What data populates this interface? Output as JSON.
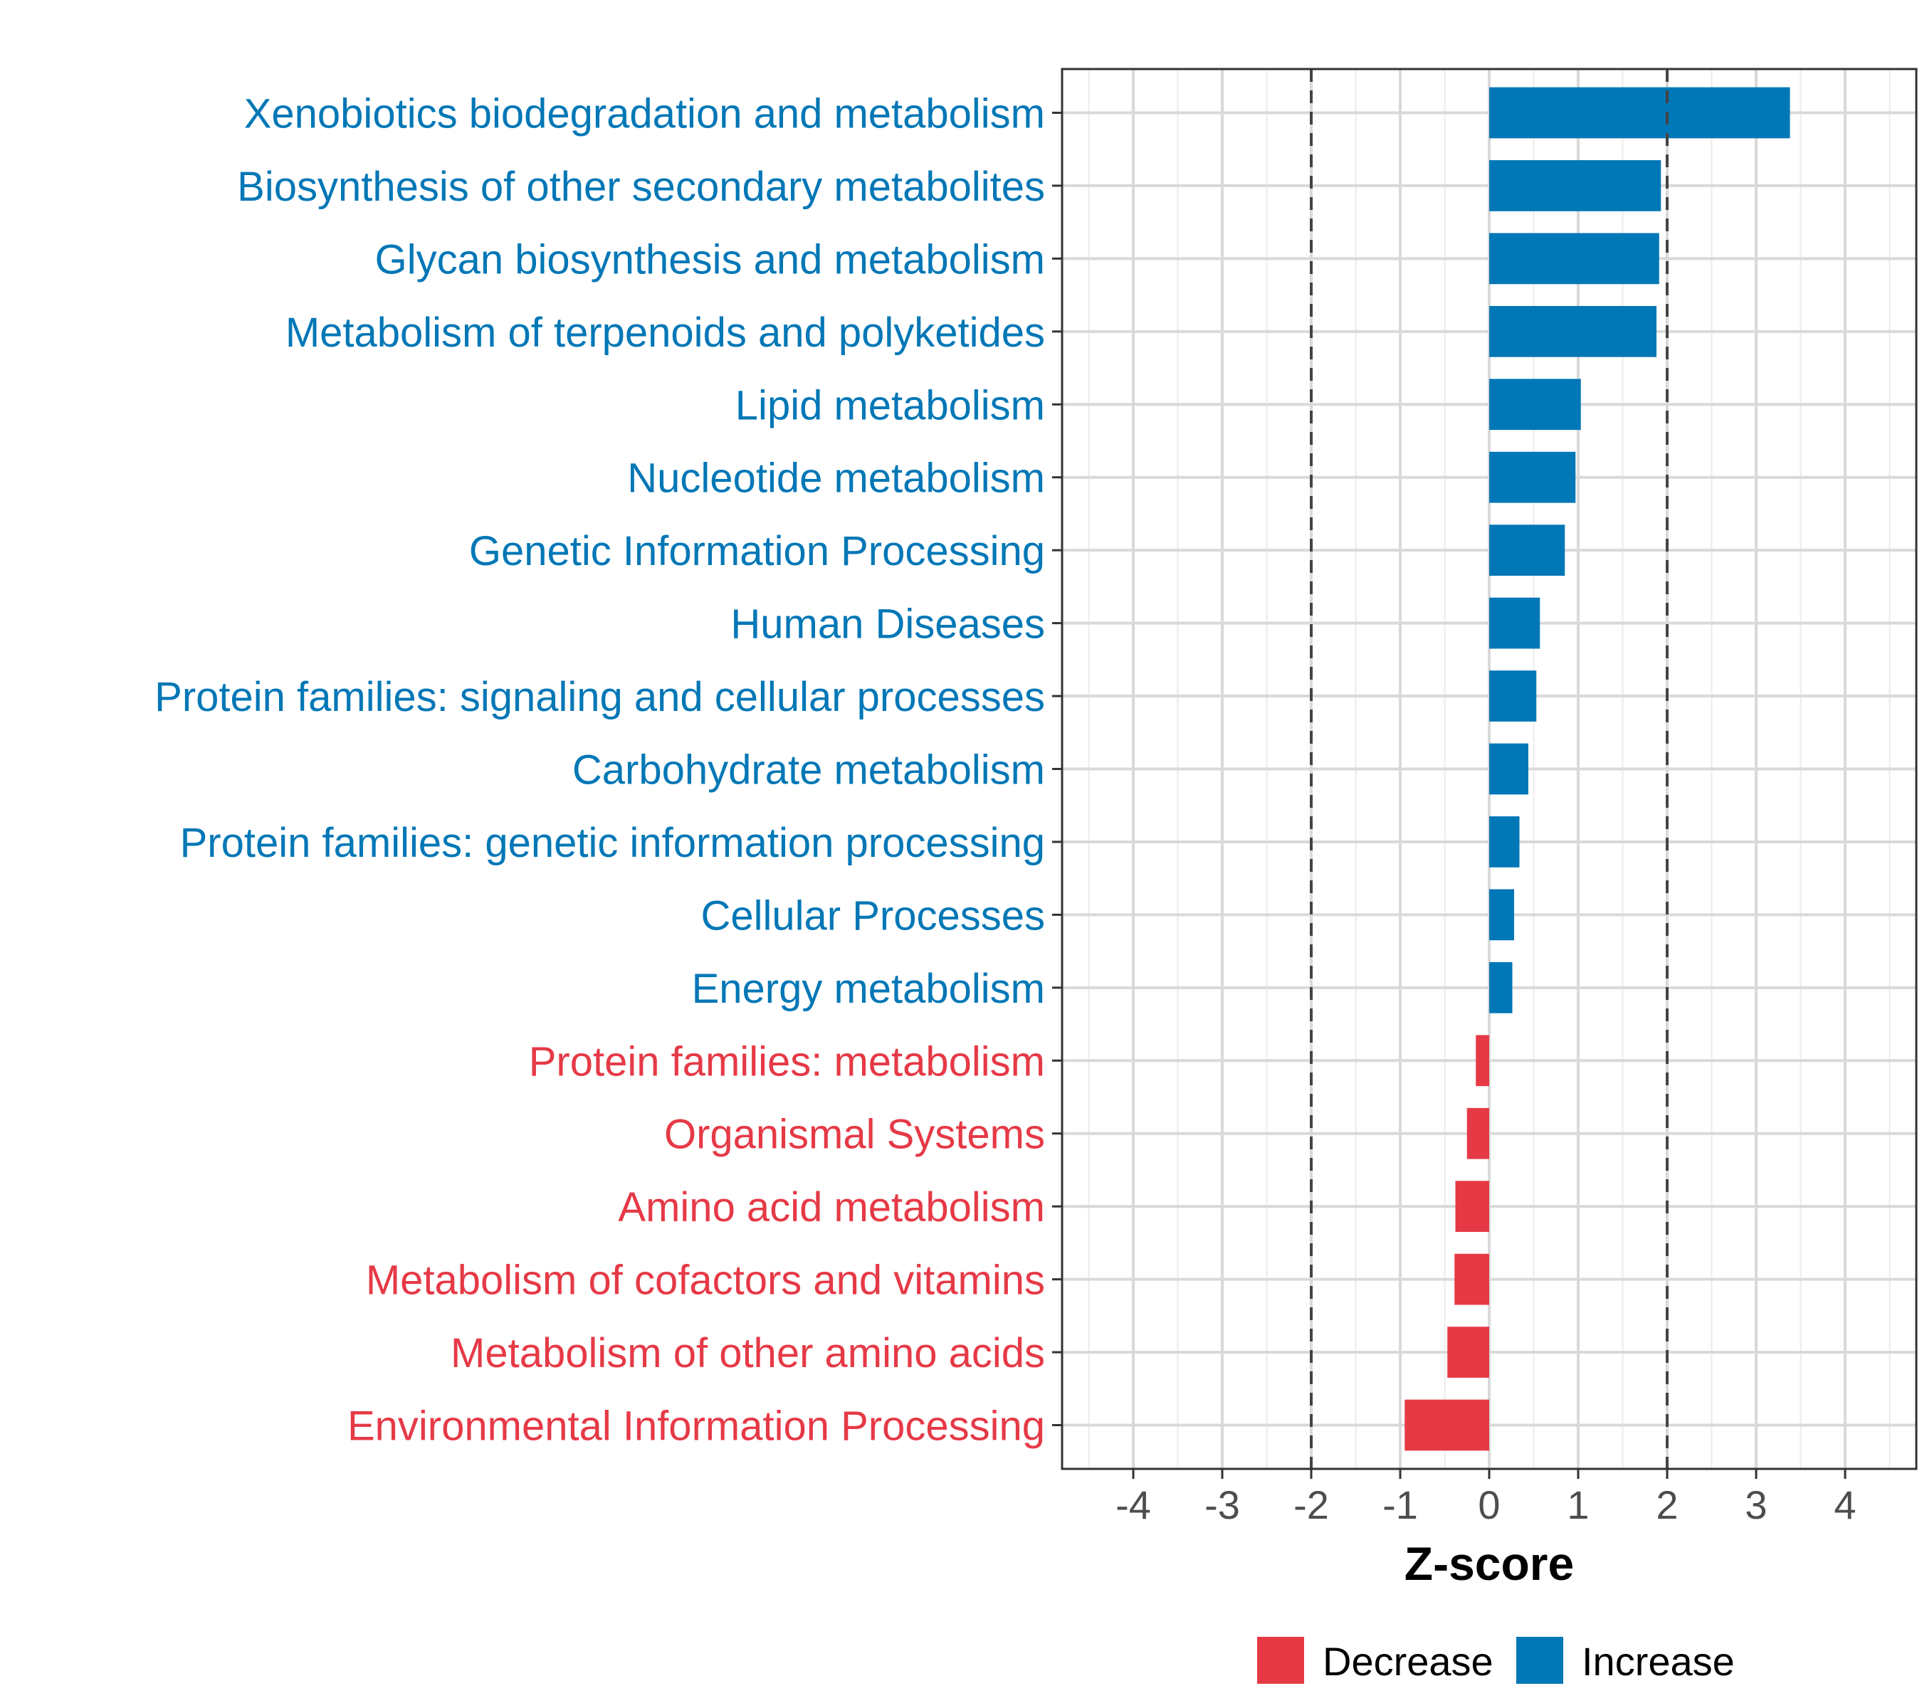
{
  "chart_data": {
    "type": "bar",
    "orientation": "horizontal",
    "title": "",
    "xlabel": "Z-score",
    "ylabel": "",
    "xlim": [
      -4.8,
      4.8
    ],
    "xticks": [
      -4,
      -3,
      -2,
      -1,
      0,
      1,
      2,
      3,
      4
    ],
    "xtick_labels": [
      "-4",
      "-3",
      "-2",
      "-1",
      "0",
      "1",
      "2",
      "3",
      "4"
    ],
    "reference_lines": [
      -2,
      2
    ],
    "grid": true,
    "categories": [
      "Xenobiotics biodegradation and metabolism",
      "Biosynthesis of other secondary metabolites",
      "Glycan biosynthesis and metabolism",
      "Metabolism of terpenoids and polyketides",
      "Lipid metabolism",
      "Nucleotide metabolism",
      "Genetic Information Processing",
      "Human Diseases",
      "Protein families: signaling and cellular processes",
      "Carbohydrate metabolism",
      "Protein families: genetic information processing",
      "Cellular Processes",
      "Energy metabolism",
      "Protein families: metabolism",
      "Organismal Systems",
      "Amino acid metabolism",
      "Metabolism of cofactors and vitamins",
      "Metabolism of other amino acids",
      "Environmental Information Processing"
    ],
    "values": [
      3.38,
      1.93,
      1.91,
      1.88,
      1.03,
      0.97,
      0.85,
      0.57,
      0.53,
      0.44,
      0.34,
      0.28,
      0.26,
      -0.15,
      -0.25,
      -0.38,
      -0.39,
      -0.47,
      -0.95
    ],
    "groups": [
      "Increase",
      "Increase",
      "Increase",
      "Increase",
      "Increase",
      "Increase",
      "Increase",
      "Increase",
      "Increase",
      "Increase",
      "Increase",
      "Increase",
      "Increase",
      "Decrease",
      "Decrease",
      "Decrease",
      "Decrease",
      "Decrease",
      "Decrease"
    ],
    "legend": {
      "position": "bottom",
      "entries": [
        {
          "label": "Decrease",
          "color": "#E63946"
        },
        {
          "label": "Increase",
          "color": "#0077B6"
        }
      ]
    },
    "colors": {
      "Decrease": "#E63946",
      "Increase": "#0077B6"
    }
  }
}
